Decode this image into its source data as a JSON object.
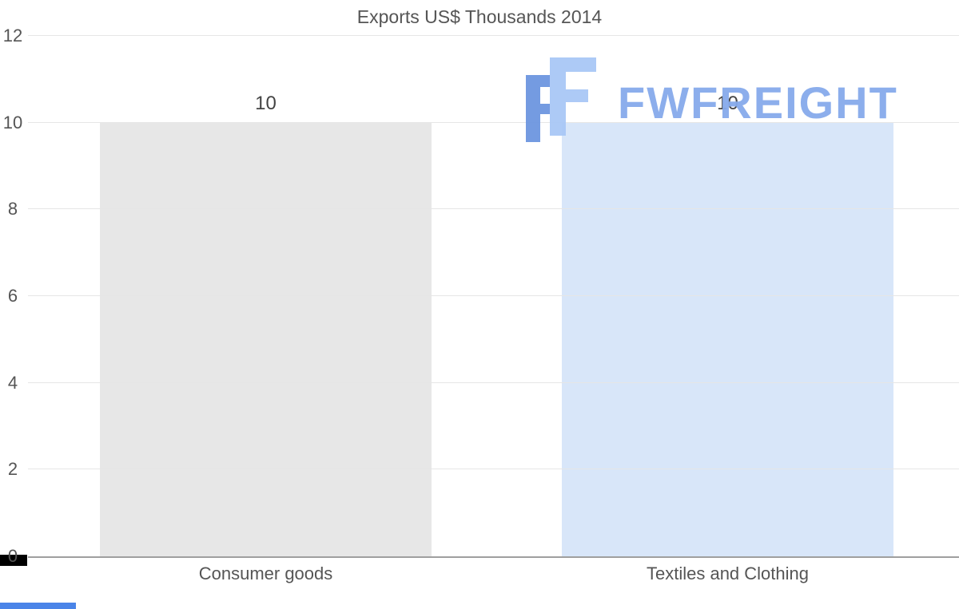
{
  "chart_data": {
    "type": "bar",
    "title": "Exports US$ Thousands 2014",
    "categories": [
      "Consumer goods",
      "Textiles and Clothing"
    ],
    "values": [
      10,
      10
    ],
    "series": [
      {
        "name": "Exports US$ Thousands 2014",
        "values": [
          10,
          10
        ]
      }
    ],
    "bar_colors": [
      "#e7e7e7",
      "#d8e6f9"
    ],
    "xlabel": "",
    "ylabel": "",
    "ylim": [
      0,
      12
    ],
    "yticks": [
      0,
      2,
      4,
      6,
      8,
      10,
      12
    ],
    "grid": true,
    "legend": false,
    "data_labels": [
      "10",
      "10"
    ]
  },
  "watermark": {
    "text": "FWFREIGHT",
    "text_color": "#86aaeb",
    "icon": "fwfreight-logo-icon",
    "icon_dark": "#6d96e0",
    "icon_light": "#a9c8f6",
    "strip_color": "#4a84e8"
  },
  "colors": {
    "title_text": "#555555",
    "axis_text": "#555555",
    "gridline": "#e6e6e6",
    "axis_line": "#9f9f9f",
    "corner_mark": "#000000"
  }
}
